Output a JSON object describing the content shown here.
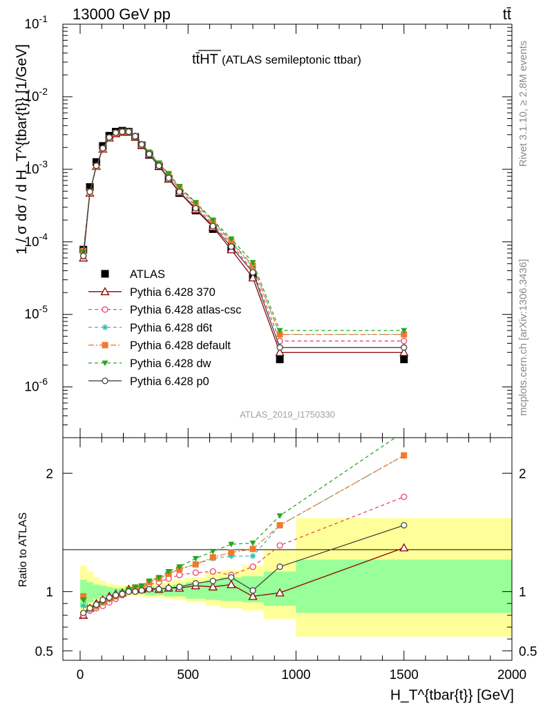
{
  "header": {
    "energy_label": "13000 GeV pp",
    "process_label": "tt̄",
    "side_rivet": "Rivet 3.1.10, ≥ 2.8M events",
    "side_mcplots": "mcplots.cern.ch [arXiv:1306.3436]",
    "analysis_id": "ATLAS_2019_I1750330"
  },
  "chart_data": [
    {
      "type": "line",
      "title": "tt̄HT (ATLAS semileptonic ttbar)",
      "title_main": "tt̄HT",
      "title_sub": "(ATLAS semileptonic ttbar)",
      "ylabel": "1 / σ dσ / d H_T^{tbar{t}} [1/GeV]",
      "yscale": "log",
      "ylim": [
        2e-07,
        0.1
      ],
      "xlim": [
        -80,
        2000
      ],
      "y_tick_labels": [
        "10^-6",
        "10^-5",
        "10^-4",
        "10^-3",
        "10^-2",
        "10^-1"
      ],
      "legend": "left",
      "x": [
        15,
        45,
        75,
        105,
        135,
        165,
        195,
        225,
        255,
        285,
        320,
        365,
        410,
        460,
        535,
        615,
        700,
        800,
        925,
        1500
      ],
      "series": [
        {
          "name": "ATLAS",
          "color": "#000000",
          "marker": "square",
          "values": [
            7.8e-05,
            0.00057,
            0.00126,
            0.0021,
            0.0029,
            0.0033,
            0.0034,
            0.0033,
            0.0028,
            0.00215,
            0.00158,
            0.0011,
            0.00074,
            0.00047,
            0.00027,
            0.00015,
            8.2e-05,
            3.3e-05,
            2.4e-06,
            2.4e-06
          ]
        },
        {
          "name": "Pythia 6.428 370",
          "color": "#8b0000",
          "marker": "triangle-open",
          "dash": "",
          "values": [
            6e-05,
            0.00047,
            0.0011,
            0.0019,
            0.0027,
            0.0031,
            0.00325,
            0.00325,
            0.0028,
            0.00215,
            0.0016,
            0.0011,
            0.00074,
            0.00048,
            0.00028,
            0.00016,
            7.8e-05,
            3.2e-05,
            3e-06,
            3e-06
          ]
        },
        {
          "name": "Pythia 6.428 atlas-csc",
          "color": "#e8446a",
          "marker": "circle-open",
          "dash": "5,4",
          "values": [
            6.3e-05,
            0.00048,
            0.00108,
            0.00185,
            0.00265,
            0.0031,
            0.0033,
            0.0033,
            0.00285,
            0.0022,
            0.00165,
            0.00118,
            0.00082,
            0.00053,
            0.00031,
            0.000175,
            9.3e-05,
            4e-05,
            4.3e-06,
            4.3e-06
          ]
        },
        {
          "name": "Pythia 6.428 d6t",
          "color": "#2fc0a8",
          "marker": "star",
          "dash": "5,4",
          "values": [
            6.8e-05,
            0.00048,
            0.0011,
            0.0019,
            0.0027,
            0.00315,
            0.0033,
            0.0033,
            0.00285,
            0.0022,
            0.0017,
            0.0012,
            0.00085,
            0.00056,
            0.00033,
            0.00019,
            9.8e-05,
            4.5e-05,
            5.3e-06,
            5.3e-06
          ]
        },
        {
          "name": "Pythia 6.428 default",
          "color": "#f2792c",
          "marker": "square",
          "dash": "8,3,2,3",
          "values": [
            7.5e-05,
            0.00049,
            0.0011,
            0.0019,
            0.0027,
            0.00315,
            0.0033,
            0.0033,
            0.00285,
            0.0022,
            0.0017,
            0.0012,
            0.00086,
            0.00057,
            0.00034,
            0.000195,
            0.000102,
            4.7e-05,
            5.3e-06,
            5.3e-06
          ]
        },
        {
          "name": "Pythia 6.428 dw",
          "color": "#1fa81f",
          "marker": "triangle-down",
          "dash": "5,4",
          "values": [
            7.2e-05,
            0.00048,
            0.0011,
            0.0019,
            0.0027,
            0.00315,
            0.00335,
            0.00335,
            0.0029,
            0.00225,
            0.00172,
            0.00122,
            0.00087,
            0.00058,
            0.00035,
            0.0002,
            0.00011,
            5.2e-05,
            6e-06,
            6e-06
          ]
        },
        {
          "name": "Pythia 6.428 p0",
          "color": "#444444",
          "marker": "circle-open",
          "dash": "",
          "values": [
            6.4e-05,
            0.00049,
            0.00112,
            0.00195,
            0.00275,
            0.0032,
            0.0033,
            0.0033,
            0.00285,
            0.0022,
            0.00162,
            0.00112,
            0.00076,
            0.00049,
            0.00029,
            0.000165,
            8.6e-05,
            3.8e-05,
            3.5e-06,
            3.5e-06
          ]
        }
      ]
    },
    {
      "type": "line",
      "xlabel": "H_T^{tbar{t}} [GeV]",
      "ylabel": "Ratio to ATLAS",
      "ylim": [
        0.42,
        2.3
      ],
      "xlim": [
        -80,
        2000
      ],
      "x_tick_labels": [
        "0",
        "500",
        "1000",
        "1500",
        "2000"
      ],
      "y_tick_labels": [
        "0.5",
        "1",
        "2"
      ],
      "bins": [
        [
          0,
          30
        ],
        [
          30,
          60
        ],
        [
          60,
          90
        ],
        [
          90,
          120
        ],
        [
          120,
          150
        ],
        [
          150,
          180
        ],
        [
          180,
          210
        ],
        [
          210,
          240
        ],
        [
          240,
          270
        ],
        [
          270,
          300
        ],
        [
          300,
          340
        ],
        [
          340,
          390
        ],
        [
          390,
          430
        ],
        [
          430,
          490
        ],
        [
          490,
          580
        ],
        [
          580,
          650
        ],
        [
          650,
          750
        ],
        [
          750,
          850
        ],
        [
          850,
          1000
        ],
        [
          1000,
          2000
        ]
      ],
      "band_yellow": [
        [
          0.8,
          1.22
        ],
        [
          0.87,
          1.17
        ],
        [
          0.91,
          1.12
        ],
        [
          0.93,
          1.09
        ],
        [
          0.95,
          1.07
        ],
        [
          0.96,
          1.06
        ],
        [
          0.96,
          1.05
        ],
        [
          0.96,
          1.05
        ],
        [
          0.96,
          1.05
        ],
        [
          0.96,
          1.05
        ],
        [
          0.95,
          1.06
        ],
        [
          0.95,
          1.07
        ],
        [
          0.94,
          1.08
        ],
        [
          0.93,
          1.1
        ],
        [
          0.91,
          1.12
        ],
        [
          0.88,
          1.16
        ],
        [
          0.86,
          1.18
        ],
        [
          0.84,
          1.22
        ],
        [
          0.77,
          1.35
        ],
        [
          0.62,
          1.62
        ]
      ],
      "band_green": [
        [
          0.87,
          1.1
        ],
        [
          0.91,
          1.08
        ],
        [
          0.94,
          1.06
        ],
        [
          0.96,
          1.05
        ],
        [
          0.97,
          1.04
        ],
        [
          0.97,
          1.03
        ],
        [
          0.98,
          1.03
        ],
        [
          0.98,
          1.03
        ],
        [
          0.98,
          1.03
        ],
        [
          0.98,
          1.03
        ],
        [
          0.97,
          1.04
        ],
        [
          0.97,
          1.04
        ],
        [
          0.96,
          1.05
        ],
        [
          0.96,
          1.06
        ],
        [
          0.94,
          1.08
        ],
        [
          0.93,
          1.1
        ],
        [
          0.92,
          1.12
        ],
        [
          0.91,
          1.13
        ],
        [
          0.88,
          1.17
        ],
        [
          0.82,
          1.27
        ]
      ],
      "x": [
        15,
        45,
        75,
        105,
        135,
        165,
        195,
        225,
        255,
        285,
        320,
        365,
        410,
        460,
        535,
        615,
        700,
        800,
        925,
        1500
      ],
      "series": [
        {
          "name": "Pythia 6.428 370",
          "color": "#8b0000",
          "marker": "triangle-open",
          "dash": "",
          "values": [
            0.8,
            0.86,
            0.9,
            0.93,
            0.96,
            0.98,
            0.99,
            1.02,
            1.02,
            1.02,
            1.03,
            1.02,
            1.03,
            1.03,
            1.05,
            1.04,
            1.06,
            0.96,
            0.99,
            1.37
          ]
        },
        {
          "name": "Pythia 6.428 atlas-csc",
          "color": "#e8446a",
          "marker": "circle-open",
          "dash": "5,4",
          "values": [
            0.8,
            0.84,
            0.86,
            0.88,
            0.91,
            0.94,
            0.97,
            1.0,
            1.02,
            1.03,
            1.06,
            1.08,
            1.11,
            1.14,
            1.16,
            1.17,
            1.14,
            1.21,
            1.39,
            1.8
          ]
        },
        {
          "name": "Pythia 6.428 d6t",
          "color": "#2fc0a8",
          "marker": "star",
          "dash": "5,4",
          "values": [
            0.88,
            0.85,
            0.87,
            0.91,
            0.93,
            0.96,
            0.98,
            1.0,
            1.02,
            1.03,
            1.08,
            1.11,
            1.15,
            1.19,
            1.23,
            1.28,
            1.3,
            1.3,
            1.56,
            2.15
          ]
        },
        {
          "name": "Pythia 6.428 default",
          "color": "#f2792c",
          "marker": "square",
          "dash": "8,3,2,3",
          "values": [
            0.96,
            0.86,
            0.88,
            0.91,
            0.94,
            0.96,
            0.98,
            1.01,
            1.03,
            1.04,
            1.08,
            1.11,
            1.15,
            1.19,
            1.23,
            1.29,
            1.33,
            1.36,
            1.56,
            2.15
          ]
        },
        {
          "name": "Pythia 6.428 dw",
          "color": "#1fa81f",
          "marker": "triangle-down",
          "dash": "5,4",
          "values": [
            0.93,
            0.86,
            0.88,
            0.91,
            0.94,
            0.96,
            0.99,
            1.02,
            1.04,
            1.05,
            1.09,
            1.12,
            1.17,
            1.21,
            1.28,
            1.34,
            1.4,
            1.41,
            1.64,
            2.35
          ]
        },
        {
          "name": "Pythia 6.428 p0",
          "color": "#444444",
          "marker": "circle-open",
          "dash": "",
          "values": [
            0.82,
            0.86,
            0.89,
            0.93,
            0.95,
            0.97,
            0.98,
            1.0,
            1.0,
            1.01,
            1.02,
            1.02,
            1.03,
            1.04,
            1.07,
            1.09,
            1.12,
            1.01,
            1.21,
            1.56
          ]
        }
      ]
    }
  ]
}
